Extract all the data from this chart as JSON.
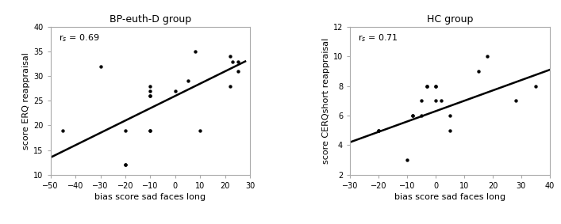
{
  "left": {
    "title": "BP-euth-D group",
    "xlabel": "bias score sad faces long",
    "ylabel": "score ERQ reappraisal",
    "xlim": [
      -50,
      30
    ],
    "ylim": [
      10,
      40
    ],
    "xticks": [
      -50,
      -40,
      -30,
      -20,
      -10,
      0,
      10,
      20,
      30
    ],
    "yticks": [
      10,
      15,
      20,
      25,
      30,
      35,
      40
    ],
    "annotation": "r$_s$ = 0.69",
    "scatter_x": [
      -45,
      -30,
      -20,
      -20,
      -20,
      -10,
      -10,
      -10,
      -10,
      -10,
      -10,
      0,
      5,
      8,
      10,
      22,
      22,
      23,
      25,
      25
    ],
    "scatter_y": [
      19,
      32,
      12,
      12,
      19,
      26,
      27,
      28,
      19,
      19,
      26,
      27,
      29,
      35,
      19,
      28,
      34,
      33,
      31,
      33
    ],
    "line_x": [
      -50,
      28
    ],
    "line_y": [
      13.5,
      33.0
    ]
  },
  "right": {
    "title": "HC group",
    "xlabel": "bias score sad faces long",
    "ylabel": "score CERQshort reappraisal",
    "xlim": [
      -30,
      40
    ],
    "ylim": [
      2,
      12
    ],
    "xticks": [
      -30,
      -20,
      -10,
      0,
      10,
      20,
      30,
      40
    ],
    "yticks": [
      2,
      4,
      6,
      8,
      10,
      12
    ],
    "annotation": "r$_s$ = 0.71",
    "scatter_x": [
      -20,
      -20,
      -10,
      -8,
      -8,
      -5,
      -5,
      -3,
      -3,
      0,
      0,
      0,
      2,
      5,
      5,
      15,
      18,
      28,
      35
    ],
    "scatter_y": [
      5,
      5,
      3,
      6,
      6,
      7,
      6,
      8,
      8,
      7,
      8,
      8,
      7,
      6,
      5,
      9,
      10,
      7,
      8
    ],
    "line_x": [
      -30,
      40
    ],
    "line_y": [
      4.2,
      9.1
    ]
  },
  "dot_color": "#000000",
  "line_color": "#000000",
  "bg_color": "#ffffff",
  "dot_size": 10,
  "spine_color": "#aaaaaa",
  "title_fontsize": 9,
  "label_fontsize": 8,
  "tick_fontsize": 7,
  "annot_fontsize": 8
}
